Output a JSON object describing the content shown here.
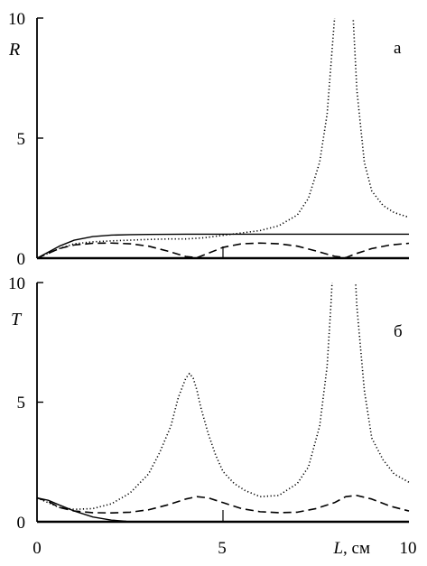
{
  "chart_data": [
    {
      "type": "line",
      "panel_label": "а",
      "ylabel": "R",
      "xlim": [
        0,
        10
      ],
      "ylim": [
        0,
        10
      ],
      "yticks": [
        "0",
        "5",
        "10"
      ],
      "series": [
        {
          "style": "solid",
          "x": [
            0,
            0.3,
            0.6,
            1.0,
            1.5,
            2.0,
            2.5,
            3.0,
            4.0,
            5.0,
            6.0,
            7.0,
            8.0,
            9.0,
            10.0
          ],
          "y": [
            0,
            0.25,
            0.5,
            0.75,
            0.9,
            0.96,
            0.98,
            0.99,
            1.0,
            1.0,
            1.0,
            1.0,
            1.0,
            1.0,
            1.0
          ]
        },
        {
          "style": "dashed",
          "x": [
            0,
            0.3,
            0.6,
            1.0,
            1.5,
            2.0,
            2.5,
            3.0,
            3.5,
            4.0,
            4.3,
            4.6,
            5.0,
            5.5,
            6.0,
            6.5,
            7.0,
            7.5,
            8.0,
            8.3,
            8.6,
            9.0,
            9.5,
            10.0
          ],
          "y": [
            0,
            0.2,
            0.4,
            0.55,
            0.62,
            0.63,
            0.6,
            0.5,
            0.3,
            0.07,
            0.02,
            0.2,
            0.45,
            0.6,
            0.63,
            0.6,
            0.5,
            0.3,
            0.08,
            0.02,
            0.2,
            0.4,
            0.55,
            0.62
          ]
        },
        {
          "style": "dotted",
          "x": [
            0,
            0.3,
            0.6,
            1.0,
            1.5,
            2.0,
            2.5,
            3.0,
            3.5,
            4.0,
            4.5,
            5.0,
            5.5,
            6.0,
            6.5,
            7.0,
            7.3,
            7.6,
            7.8,
            7.9,
            8.0,
            8.1,
            8.2,
            8.4,
            8.5,
            8.6,
            8.8,
            9.0,
            9.3,
            9.6,
            10.0
          ],
          "y": [
            0,
            0.2,
            0.4,
            0.6,
            0.68,
            0.72,
            0.75,
            0.78,
            0.8,
            0.8,
            0.85,
            0.95,
            1.05,
            1.15,
            1.35,
            1.8,
            2.5,
            4.0,
            6.0,
            8.0,
            10.0,
            12.0,
            12.0,
            12.0,
            10.0,
            7.0,
            4.0,
            2.8,
            2.2,
            1.9,
            1.7
          ]
        }
      ]
    },
    {
      "type": "line",
      "panel_label": "б",
      "ylabel": "T",
      "xlabel": "L, см",
      "xlim": [
        0,
        10
      ],
      "ylim": [
        0,
        10
      ],
      "xticks": [
        "0",
        "5",
        "10"
      ],
      "yticks": [
        "0",
        "5",
        "10"
      ],
      "series": [
        {
          "style": "solid",
          "x": [
            0,
            0.3,
            0.6,
            1.0,
            1.5,
            2.0,
            2.4
          ],
          "y": [
            1.0,
            0.9,
            0.7,
            0.45,
            0.2,
            0.07,
            0.02
          ]
        },
        {
          "style": "dashed",
          "x": [
            0,
            0.3,
            0.6,
            1.0,
            1.5,
            2.0,
            2.5,
            3.0,
            3.5,
            4.0,
            4.3,
            4.6,
            5.0,
            5.5,
            6.0,
            6.5,
            7.0,
            7.5,
            8.0,
            8.3,
            8.6,
            9.0,
            9.5,
            10.0
          ],
          "y": [
            1.0,
            0.85,
            0.6,
            0.45,
            0.38,
            0.37,
            0.4,
            0.5,
            0.7,
            0.95,
            1.05,
            1.0,
            0.8,
            0.55,
            0.42,
            0.38,
            0.4,
            0.55,
            0.8,
            1.05,
            1.1,
            0.95,
            0.65,
            0.45
          ]
        },
        {
          "style": "dotted",
          "x": [
            0,
            0.3,
            0.6,
            1.0,
            1.5,
            2.0,
            2.5,
            3.0,
            3.3,
            3.6,
            3.8,
            4.0,
            4.1,
            4.2,
            4.3,
            4.4,
            4.6,
            4.8,
            5.0,
            5.3,
            5.6,
            6.0,
            6.5,
            7.0,
            7.3,
            7.6,
            7.8,
            7.9,
            8.0,
            8.1,
            8.2,
            8.4,
            8.5,
            8.6,
            8.8,
            9.0,
            9.3,
            9.6,
            10.0
          ],
          "y": [
            1.0,
            0.8,
            0.6,
            0.52,
            0.55,
            0.75,
            1.2,
            2.0,
            2.9,
            4.0,
            5.2,
            6.0,
            6.2,
            6.0,
            5.5,
            4.8,
            3.7,
            2.8,
            2.1,
            1.6,
            1.3,
            1.05,
            1.1,
            1.6,
            2.3,
            4.0,
            6.5,
            9.0,
            12.0,
            12.0,
            12.0,
            12.0,
            12.0,
            9.0,
            5.5,
            3.5,
            2.6,
            2.0,
            1.65
          ]
        }
      ]
    }
  ]
}
